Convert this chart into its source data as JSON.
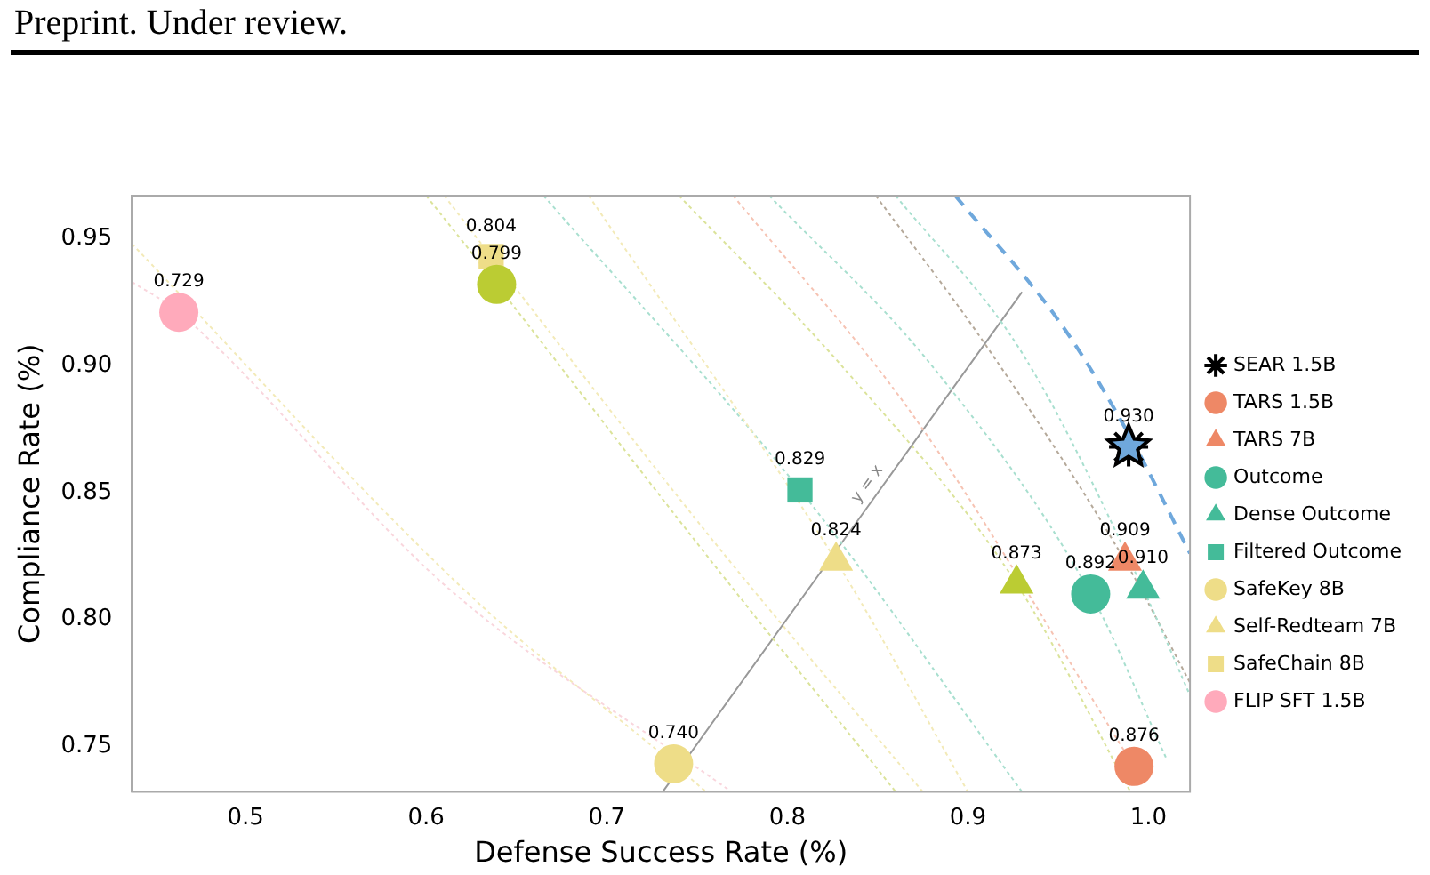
{
  "chart_data": {
    "type": "scatter",
    "xlabel": "Defense Success Rate (%)",
    "ylabel": "Compliance Rate (%)",
    "annotations": [
      "Preprint. Under review.",
      "y = x",
      {
        "text": "0.930",
        "x": 0.989,
        "y": 0.868
      },
      {
        "text": "0.876",
        "x": 0.992,
        "y": 0.742
      },
      {
        "text": "0.909",
        "x": 0.987,
        "y": 0.823
      },
      {
        "text": "0.892",
        "x": 0.968,
        "y": 0.81
      },
      {
        "text": "0.910",
        "x": 0.997,
        "y": 0.812
      },
      {
        "text": "0.829",
        "x": 0.807,
        "y": 0.851
      },
      {
        "text": "0.799",
        "x": 0.639,
        "y": 0.932
      },
      {
        "text": "0.873",
        "x": 0.927,
        "y": 0.814
      },
      {
        "text": "0.740",
        "x": 0.737,
        "y": 0.743
      },
      {
        "text": "0.824",
        "x": 0.827,
        "y": 0.823
      },
      {
        "text": "0.804",
        "x": 0.636,
        "y": 0.943
      },
      {
        "text": "0.729",
        "x": 0.463,
        "y": 0.921
      }
    ],
    "xlim": [
      0.437,
      1.023
    ],
    "ylim": [
      0.732,
      0.967
    ],
    "xticks": [
      0.5,
      0.6,
      0.7,
      {
        "value": 0.8,
        "label": "0.8"
      },
      {
        "value": 0.9,
        "label": "0.9"
      },
      {
        "value": 1,
        "label": "1.0"
      }
    ],
    "yticks": [
      0.75,
      {
        "value": 0.8,
        "label": "0.80"
      },
      0.85,
      {
        "value": 0.9,
        "label": "0.90"
      },
      0.95
    ],
    "grid": false,
    "legend": "right",
    "series": [
      {
        "type": "line",
        "color": "#f9d6dd",
        "line_style": "dotted",
        "marker": "none",
        "x": [
          0.437,
          0.463,
          0.611,
          0.769
        ],
        "values": [
          0.933,
          0.921,
          0.813,
          0.732
        ]
      },
      {
        "type": "line",
        "color": "#f3eab8",
        "line_style": "dotted",
        "marker": "none",
        "x": [
          0.437,
          0.625,
          0.737,
          0.755
        ],
        "values": [
          0.948,
          0.809,
          0.743,
          0.732
        ]
      },
      {
        "type": "line",
        "color": "#dbe39a",
        "line_style": "dotted",
        "marker": "none",
        "x": [
          0.6,
          0.639,
          0.75,
          0.86
        ],
        "values": [
          0.967,
          0.932,
          0.83,
          0.732
        ]
      },
      {
        "type": "line",
        "color": "#f3eab8",
        "line_style": "dotted",
        "marker": "none",
        "x": [
          0.61,
          0.636,
          0.76,
          0.875
        ],
        "values": [
          0.967,
          0.943,
          0.83,
          0.732
        ]
      },
      {
        "type": "line",
        "color": "#f3eab8",
        "line_style": "dotted",
        "marker": "none",
        "x": [
          0.69,
          0.827,
          0.9
        ],
        "values": [
          0.967,
          0.823,
          0.732
        ]
      },
      {
        "type": "line",
        "color": "#a8dfcf",
        "line_style": "dotted",
        "marker": "none",
        "x": [
          0.665,
          0.807,
          0.93
        ],
        "values": [
          0.967,
          0.851,
          0.732
        ]
      },
      {
        "type": "line",
        "color": "#dbe39a",
        "line_style": "dotted",
        "marker": "none",
        "x": [
          0.74,
          0.83,
          0.927,
          0.99
        ],
        "values": [
          0.967,
          0.9,
          0.814,
          0.732
        ]
      },
      {
        "type": "line",
        "color": "#f6c3b3",
        "line_style": "dotted",
        "marker": "none",
        "x": [
          0.77,
          0.87,
          0.992
        ],
        "values": [
          0.967,
          0.88,
          0.742
        ]
      },
      {
        "type": "line",
        "color": "#a8dfcf",
        "line_style": "dotted",
        "marker": "none",
        "x": [
          0.79,
          0.88,
          0.968,
          1.01
        ],
        "values": [
          0.967,
          0.9,
          0.81,
          0.745
        ]
      },
      {
        "type": "line",
        "color": "#a8dfcf",
        "line_style": "dotted",
        "marker": "none",
        "x": [
          0.86,
          0.93,
          0.997,
          1.023
        ],
        "values": [
          0.967,
          0.905,
          0.812,
          0.77
        ]
      },
      {
        "type": "line",
        "color": "#b5a99a",
        "line_style": "dotted",
        "marker": "none",
        "x": [
          0.849,
          0.909,
          0.987,
          1.023
        ],
        "values": [
          0.967,
          0.909,
          0.823,
          0.775
        ]
      },
      {
        "type": "line",
        "color": "#6fa8dc",
        "line_style": "dashed",
        "marker": "none",
        "x": [
          0.893,
          0.952,
          0.989,
          1.023
        ],
        "values": [
          0.967,
          0.916,
          0.873,
          0.826
        ]
      },
      {
        "type": "line",
        "color": "#999999",
        "line_style": "solid",
        "marker": "none",
        "x": [
          0.731,
          0.93
        ],
        "values": [
          0.732,
          0.929
        ]
      },
      {
        "name": "SEAR 1.5B",
        "color": "#6fa8dc",
        "marker": "star",
        "x": [
          0.989
        ],
        "values": [
          0.868
        ]
      },
      {
        "name": "TARS 1.5B",
        "color": "#ee8866",
        "marker": "circle",
        "x": [
          0.992
        ],
        "values": [
          0.742
        ]
      },
      {
        "name": "TARS 7B",
        "color": "#ee8866",
        "marker": "triangle",
        "x": [
          0.987
        ],
        "values": [
          0.823
        ]
      },
      {
        "name": "Outcome",
        "color": "#44bb99",
        "marker": "circle",
        "x": [
          0.968
        ],
        "values": [
          0.81
        ]
      },
      {
        "name": "Dense Outcome",
        "color": "#44bb99",
        "marker": "triangle",
        "x": [
          0.997
        ],
        "values": [
          0.812
        ]
      },
      {
        "name": "Filtered Outcome",
        "color": "#44bb99",
        "marker": "square",
        "x": [
          0.807
        ],
        "values": [
          0.851
        ]
      },
      {
        "color": "#bbcc33",
        "marker": "circle",
        "x": [
          0.639
        ],
        "values": [
          0.932
        ]
      },
      {
        "color": "#bbcc33",
        "marker": "triangle",
        "x": [
          0.927
        ],
        "values": [
          0.814
        ]
      },
      {
        "name": "SafeKey 8B",
        "color": "#eedd88",
        "marker": "circle",
        "x": [
          0.737
        ],
        "values": [
          0.743
        ]
      },
      {
        "name": "Self-Redteam 7B",
        "color": "#eedd88",
        "marker": "triangle",
        "x": [
          0.827
        ],
        "values": [
          0.823
        ]
      },
      {
        "name": "SafeChain 8B",
        "color": "#eedd88",
        "marker": "square",
        "x": [
          0.636
        ],
        "values": [
          0.943
        ]
      },
      {
        "name": "FLIP SFT 1.5B",
        "color": "#ffaabb",
        "marker": "circle",
        "x": [
          0.463
        ],
        "values": [
          0.921
        ]
      }
    ]
  }
}
